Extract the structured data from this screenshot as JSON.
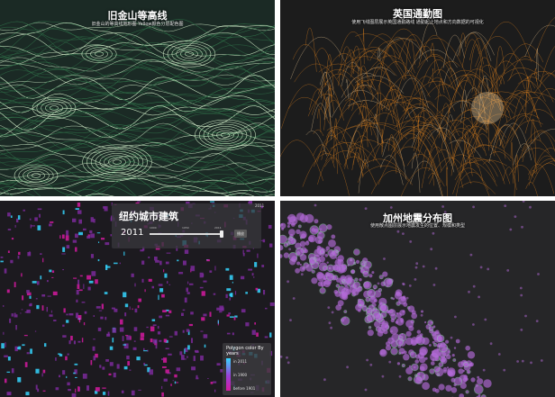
{
  "panels": [
    {
      "title": "旧金山等高线",
      "subtitle": "旧金山的等高线地形图 Yellow颜色分层配色图",
      "colors": {
        "background": "#1b2a25",
        "contour_light": "#d8f5cf",
        "contour_dark": "#2f6f48"
      }
    },
    {
      "title": "英国通勤图",
      "subtitle": "使用飞线图层展示英国通勤路线 通勤起止地点和方向数据的可视化",
      "colors": {
        "background": "#1c1c1c",
        "arc": "#f08a1e",
        "glow": "#ffd9a0"
      }
    },
    {
      "title": "纽约城市建筑",
      "year": "2011",
      "slider_ticks": [
        "1900",
        "1950",
        "2011"
      ],
      "slider_fraction": 0.98,
      "button_label": "播放",
      "badge": "2011",
      "legend": {
        "title": "Polygon color By years",
        "labels": [
          "in 2011",
          "in 1900",
          "before 1901"
        ]
      },
      "colors": {
        "background": "#1c1a1f",
        "cyan": "#35d6ff",
        "magenta": "#d41aa0",
        "purple": "#7a2a9a"
      }
    },
    {
      "title": "加州地震分布图",
      "subtitle": "使用散点图层展示地震发生的位置、规模和类型",
      "colors": {
        "background": "#262628",
        "point": "#b36ad8",
        "ring": "#8fd0a8"
      }
    }
  ]
}
